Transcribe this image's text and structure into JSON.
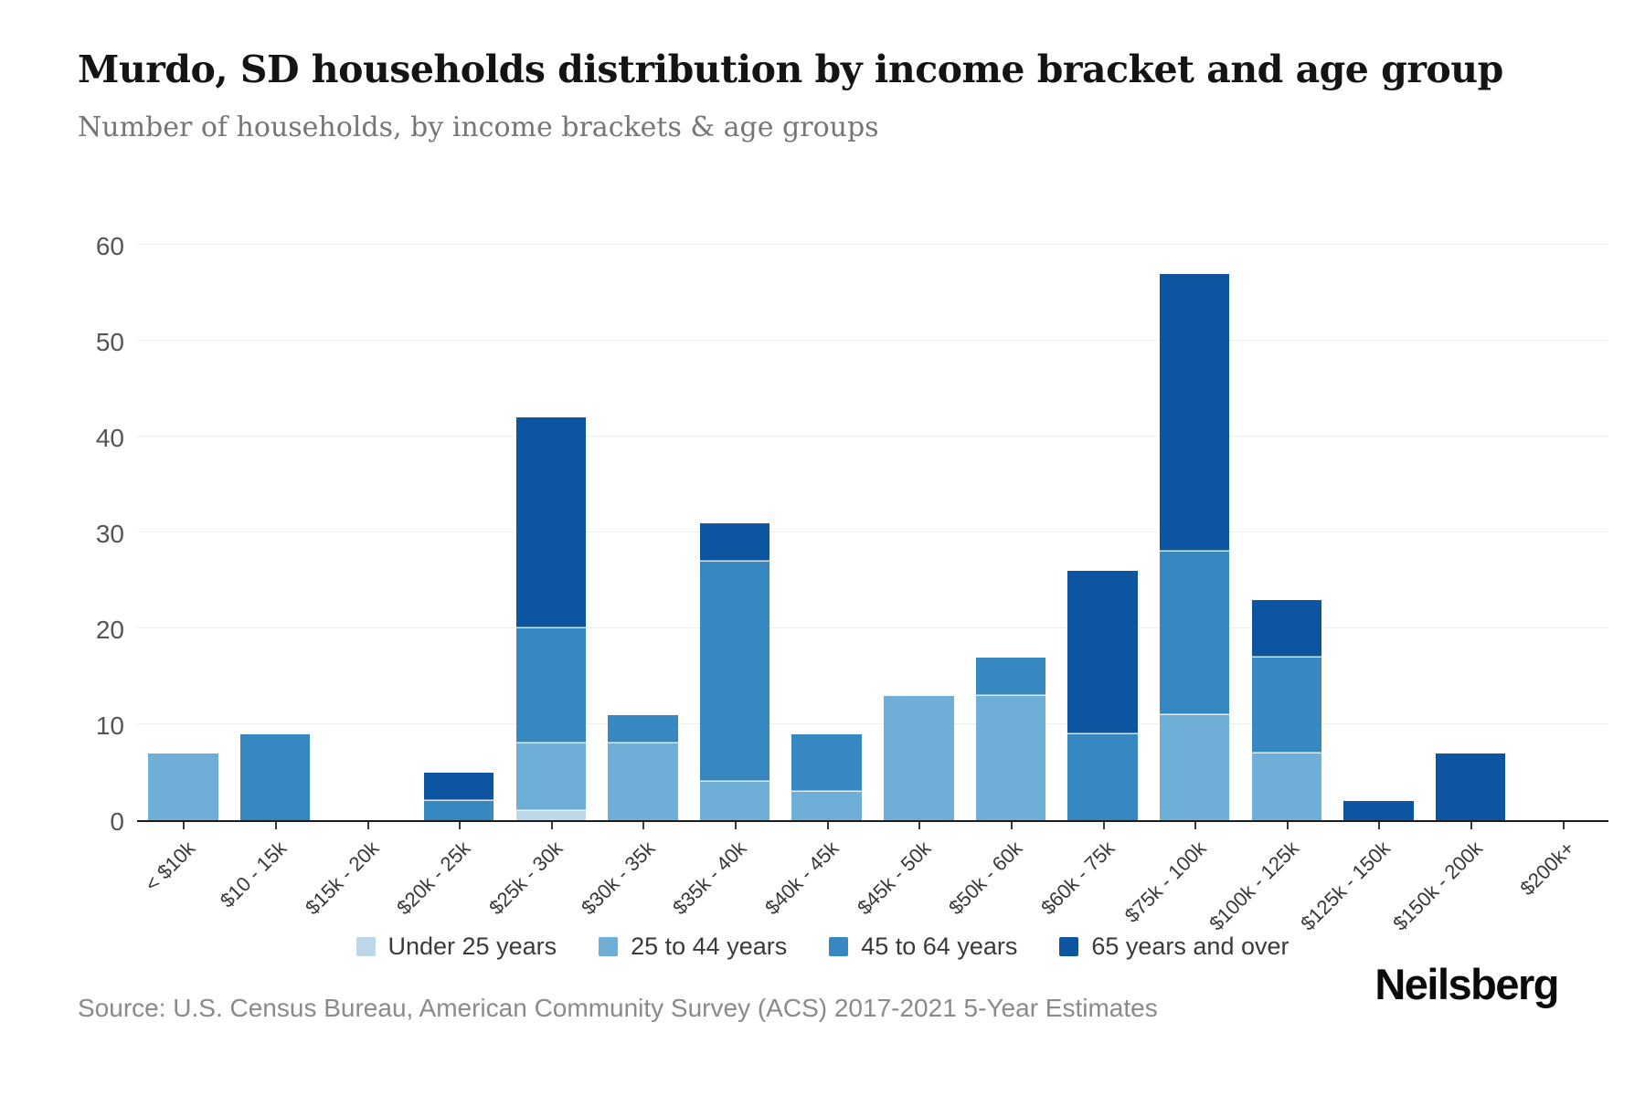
{
  "header": {
    "title": "Murdo, SD households distribution by income bracket and age group",
    "subtitle": "Number of households, by income brackets & age groups"
  },
  "footer": {
    "source": "Source: U.S. Census Bureau, American Community Survey (ACS) 2017-2021 5-Year Estimates",
    "brand": "Neilsberg"
  },
  "chart_data": {
    "type": "bar",
    "stacked": true,
    "title": "Murdo, SD households distribution by income bracket and age group",
    "subtitle": "Number of households, by income brackets & age groups",
    "xlabel": "",
    "ylabel": "",
    "ylim": [
      0,
      60
    ],
    "yticks": [
      0,
      10,
      20,
      30,
      40,
      50,
      60
    ],
    "grid": true,
    "legend_position": "bottom",
    "categories": [
      "< $10k",
      "$10 - 15k",
      "$15k - 20k",
      "$20k - 25k",
      "$25k - 30k",
      "$30k - 35k",
      "$35k - 40k",
      "$40k - 45k",
      "$45k - 50k",
      "$50k - 60k",
      "$60k - 75k",
      "$75k - 100k",
      "$100k - 125k",
      "$125k - 150k",
      "$150k - 200k",
      "$200k+"
    ],
    "series": [
      {
        "name": "Under 25 years",
        "color": "#bdd7e8",
        "values": [
          0,
          0,
          0,
          0,
          1,
          0,
          0,
          0,
          0,
          0,
          0,
          0,
          0,
          0,
          0,
          0
        ]
      },
      {
        "name": "25 to 44 years",
        "color": "#6faed6",
        "values": [
          7,
          0,
          0,
          0,
          7,
          8,
          4,
          3,
          13,
          13,
          0,
          11,
          7,
          0,
          0,
          0
        ]
      },
      {
        "name": "45 to 64 years",
        "color": "#3787c0",
        "values": [
          0,
          9,
          0,
          2,
          12,
          3,
          23,
          6,
          0,
          4,
          9,
          17,
          10,
          0,
          0,
          0
        ]
      },
      {
        "name": "65 years and over",
        "color": "#0d55a0",
        "values": [
          0,
          0,
          0,
          3,
          22,
          0,
          4,
          0,
          0,
          0,
          17,
          29,
          6,
          2,
          7,
          0
        ]
      }
    ],
    "totals": [
      7,
      9,
      0,
      5,
      42,
      11,
      31,
      9,
      13,
      17,
      26,
      57,
      23,
      2,
      7,
      0
    ]
  }
}
